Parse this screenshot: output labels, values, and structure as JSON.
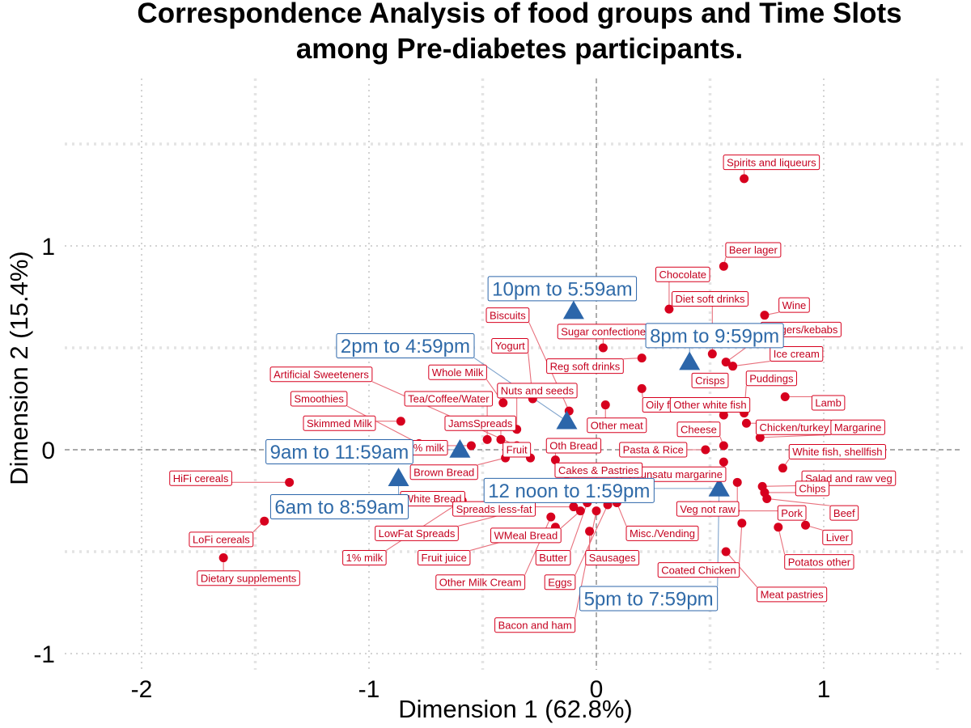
{
  "chart_data": {
    "type": "scatter",
    "title": "Correspondence Analysis of food groups and Time Slots among Pre-diabetes participants.",
    "title_lines": [
      "Correspondence Analysis of food groups and Time Slots",
      "among Pre-diabetes participants."
    ],
    "xlabel": "Dimension 1 (62.8%)",
    "ylabel": "Dimension 2 (15.4%)",
    "xlim": [
      -2.2,
      1.6
    ],
    "ylim": [
      -1.0,
      1.6
    ],
    "x_ticks": [
      -2,
      -1,
      0,
      1
    ],
    "y_ticks": [
      -1,
      0,
      1
    ],
    "grid": true,
    "reference_lines": {
      "x": 0,
      "y": 0
    },
    "colors": {
      "food": "#d7001e",
      "time": "#2c66aa",
      "food_leader": "#e8707c",
      "time_leader": "#7fa3cc"
    },
    "series": [
      {
        "marker": "circle",
        "color": "#d7001e",
        "points": [
          {
            "label": "Spirits and liqueurs",
            "x": 0.65,
            "y": 1.33,
            "lx": 0.77,
            "ly": 1.41
          },
          {
            "label": "Beer lager",
            "x": 0.56,
            "y": 0.9,
            "lx": 0.69,
            "ly": 0.98
          },
          {
            "label": "Chocolate",
            "x": 0.32,
            "y": 0.69,
            "lx": 0.38,
            "ly": 0.86
          },
          {
            "label": "Diet soft drinks",
            "x": 0.51,
            "y": 0.47,
            "lx": 0.5,
            "ly": 0.74
          },
          {
            "label": "Wine",
            "x": 0.74,
            "y": 0.66,
            "lx": 0.87,
            "ly": 0.71
          },
          {
            "label": "Burgers/kebabs",
            "x": 0.57,
            "y": 0.43,
            "lx": 0.9,
            "ly": 0.59
          },
          {
            "label": "Ice cream",
            "x": 0.6,
            "y": 0.41,
            "lx": 0.88,
            "ly": 0.47
          },
          {
            "label": "Puddings",
            "x": 0.65,
            "y": 0.18,
            "lx": 0.77,
            "ly": 0.35
          },
          {
            "label": "Lamb",
            "x": 0.83,
            "y": 0.26,
            "lx": 1.02,
            "ly": 0.23
          },
          {
            "label": "Chicken/turkey",
            "x": 0.66,
            "y": 0.13,
            "lx": 0.87,
            "ly": 0.11
          },
          {
            "label": "Margarine",
            "x": 0.72,
            "y": 0.06,
            "lx": 1.15,
            "ly": 0.11
          },
          {
            "label": "White fish, shellfish",
            "x": 0.82,
            "y": -0.09,
            "lx": 1.06,
            "ly": -0.01
          },
          {
            "label": "Salad and raw veg",
            "x": 0.73,
            "y": -0.18,
            "lx": 1.11,
            "ly": -0.14
          },
          {
            "label": "Chips",
            "x": 0.74,
            "y": -0.21,
            "lx": 0.95,
            "ly": -0.19
          },
          {
            "label": "Beef",
            "x": 0.75,
            "y": -0.24,
            "lx": 1.09,
            "ly": -0.31
          },
          {
            "label": "Pork",
            "x": 0.61,
            "y": -0.3,
            "lx": 0.86,
            "ly": -0.31
          },
          {
            "label": "Liver",
            "x": 0.92,
            "y": -0.37,
            "lx": 1.06,
            "ly": -0.43
          },
          {
            "label": "Potatos other",
            "x": 0.8,
            "y": -0.38,
            "lx": 0.98,
            "ly": -0.55
          },
          {
            "label": "Meat pastries",
            "x": 0.57,
            "y": -0.5,
            "lx": 0.86,
            "ly": -0.71
          },
          {
            "label": "Coated Chicken",
            "x": 0.64,
            "y": -0.36,
            "lx": 0.45,
            "ly": -0.59
          },
          {
            "label": "Veg not raw",
            "x": 0.62,
            "y": -0.16,
            "lx": 0.49,
            "ly": -0.29
          },
          {
            "label": "Polyunsatu margarine",
            "x": 0.56,
            "y": -0.06,
            "lx": 0.33,
            "ly": -0.12
          },
          {
            "label": "Oily fish",
            "x": 0.2,
            "y": 0.3,
            "lx": 0.3,
            "ly": 0.22
          },
          {
            "label": "Other white fish",
            "x": 0.56,
            "y": 0.17,
            "lx": 0.5,
            "ly": 0.22
          },
          {
            "label": "Cheese",
            "x": 0.56,
            "y": 0.02,
            "lx": 0.45,
            "ly": 0.1
          },
          {
            "label": "Crisps",
            "x": 0.51,
            "y": 0.33,
            "lx": 0.5,
            "ly": 0.34
          },
          {
            "label": "Pasta & Rice",
            "x": 0.48,
            "y": 0.0,
            "lx": 0.25,
            "ly": 0.0
          },
          {
            "label": "Sugar confectionery",
            "x": 0.03,
            "y": 0.5,
            "lx": 0.05,
            "ly": 0.58
          },
          {
            "label": "Reg soft drinks",
            "x": 0.2,
            "y": 0.45,
            "lx": -0.05,
            "ly": 0.41
          },
          {
            "label": "Other meat",
            "x": 0.04,
            "y": 0.22,
            "lx": 0.09,
            "ly": 0.12
          },
          {
            "label": "Biscuits",
            "x": -0.12,
            "y": 0.19,
            "lx": -0.39,
            "ly": 0.66
          },
          {
            "label": "Yogurt",
            "x": -0.28,
            "y": 0.25,
            "lx": -0.38,
            "ly": 0.51
          },
          {
            "label": "Nuts and seeds",
            "x": -0.35,
            "y": 0.1,
            "lx": -0.26,
            "ly": 0.29
          },
          {
            "label": "Whole Milk",
            "x": -0.41,
            "y": 0.23,
            "lx": -0.61,
            "ly": 0.38
          },
          {
            "label": "Tea/Coffee/Water",
            "x": -0.48,
            "y": 0.05,
            "lx": -0.65,
            "ly": 0.25
          },
          {
            "label": "JamsSpreads",
            "x": -0.42,
            "y": 0.05,
            "lx": -0.51,
            "ly": 0.13
          },
          {
            "label": "Artificial Sweeteners",
            "x": -0.35,
            "y": 0.02,
            "lx": -1.21,
            "ly": 0.37
          },
          {
            "label": "Smoothies",
            "x": -0.78,
            "y": 0.03,
            "lx": -1.22,
            "ly": 0.25
          },
          {
            "label": "Skimmed Milk",
            "x": -0.86,
            "y": 0.14,
            "lx": -1.13,
            "ly": 0.13
          },
          {
            "label": "2% milk",
            "x": -0.55,
            "y": 0.02,
            "lx": -0.75,
            "ly": 0.01
          },
          {
            "label": "Fruit",
            "x": -0.29,
            "y": -0.04,
            "lx": -0.35,
            "ly": 0.0
          },
          {
            "label": "Oth Bread",
            "x": -0.18,
            "y": -0.05,
            "lx": -0.1,
            "ly": 0.02
          },
          {
            "label": "Brown Bread",
            "x": -0.4,
            "y": -0.04,
            "lx": -0.67,
            "ly": -0.11
          },
          {
            "label": "White Bread",
            "x": -0.6,
            "y": -0.28,
            "lx": -0.72,
            "ly": -0.24
          },
          {
            "label": "Cakes & Pastries",
            "x": -0.13,
            "y": -0.12,
            "lx": 0.01,
            "ly": -0.1
          },
          {
            "label": "Spreads less-fat",
            "x": -0.1,
            "y": -0.28,
            "lx": -0.45,
            "ly": -0.29
          },
          {
            "label": "LowFat Spreads",
            "x": -0.35,
            "y": -0.3,
            "lx": -0.79,
            "ly": -0.41
          },
          {
            "label": "WMeal Bread",
            "x": -0.07,
            "y": -0.3,
            "lx": -0.31,
            "ly": -0.42
          },
          {
            "label": "Misc./Vending",
            "x": 0.09,
            "y": -0.26,
            "lx": 0.29,
            "ly": -0.41
          },
          {
            "label": "Fruit juice",
            "x": -0.18,
            "y": -0.38,
            "lx": -0.67,
            "ly": -0.53
          },
          {
            "label": "1% milk",
            "x": -0.59,
            "y": -0.25,
            "lx": -1.02,
            "ly": -0.53
          },
          {
            "label": "Butter",
            "x": -0.04,
            "y": -0.26,
            "lx": -0.19,
            "ly": -0.53
          },
          {
            "label": "Sausages",
            "x": -0.03,
            "y": -0.4,
            "lx": 0.07,
            "ly": -0.53
          },
          {
            "label": "Eggs",
            "x": 0.05,
            "y": -0.27,
            "lx": -0.16,
            "ly": -0.65
          },
          {
            "label": "Other Milk Cream",
            "x": -0.2,
            "y": -0.33,
            "lx": -0.51,
            "ly": -0.65
          },
          {
            "label": "Bacon and ham",
            "x": 0.0,
            "y": -0.3,
            "lx": -0.27,
            "ly": -0.86
          },
          {
            "label": "HiFi cereals",
            "x": -1.35,
            "y": -0.16,
            "lx": -1.74,
            "ly": -0.14
          },
          {
            "label": "LoFi cereals",
            "x": -1.46,
            "y": -0.35,
            "lx": -1.65,
            "ly": -0.44
          },
          {
            "label": "Dietary supplements",
            "x": -1.64,
            "y": -0.53,
            "lx": -1.53,
            "ly": -0.63
          }
        ]
      },
      {
        "marker": "triangle",
        "color": "#2c66aa",
        "points": [
          {
            "label": "10pm to 5:59am",
            "x": -0.1,
            "y": 0.68,
            "lx": -0.15,
            "ly": 0.79
          },
          {
            "label": "2pm to 4:59pm",
            "x": -0.13,
            "y": 0.14,
            "lx": -0.84,
            "ly": 0.51
          },
          {
            "label": "8pm to 9:59pm",
            "x": 0.41,
            "y": 0.43,
            "lx": 0.52,
            "ly": 0.56
          },
          {
            "label": "9am to 11:59am",
            "x": -0.6,
            "y": 0.0,
            "lx": -1.13,
            "ly": -0.01
          },
          {
            "label": "6am to 8:59am",
            "x": -0.87,
            "y": -0.14,
            "lx": -1.13,
            "ly": -0.28
          },
          {
            "label": "12 noon to 1:59pm",
            "x": 0.54,
            "y": -0.19,
            "lx": -0.12,
            "ly": -0.2
          },
          {
            "label": "5pm to 7:59pm",
            "x": 0.54,
            "y": -0.19,
            "lx": 0.23,
            "ly": -0.73
          }
        ]
      }
    ]
  }
}
